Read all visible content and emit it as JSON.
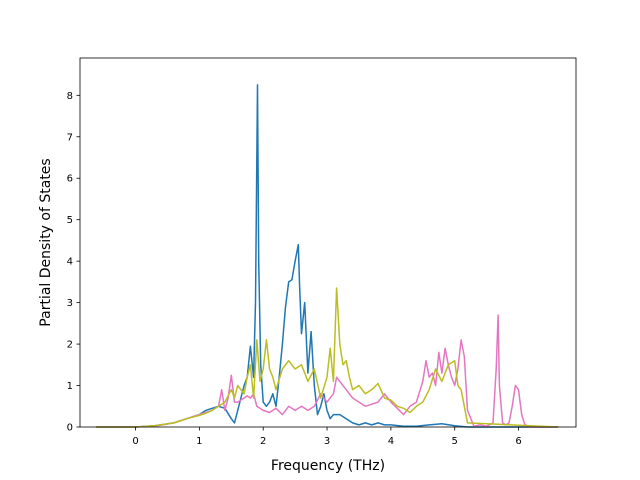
{
  "chart_data": {
    "type": "line",
    "title": "",
    "xlabel": "Frequency (THz)",
    "ylabel": "Partial Density of States",
    "xlim": [
      -0.87,
      6.9
    ],
    "ylim": [
      0,
      8.9
    ],
    "xticks": [
      0,
      1,
      2,
      3,
      4,
      5,
      6
    ],
    "yticks": [
      0,
      1,
      2,
      3,
      4,
      5,
      6,
      7,
      8
    ],
    "grid": false,
    "legend": "none",
    "series": [
      {
        "color": "#1f77b4",
        "x": [
          -0.62,
          0.0,
          0.3,
          0.6,
          0.8,
          1.0,
          1.1,
          1.2,
          1.3,
          1.4,
          1.5,
          1.55,
          1.6,
          1.7,
          1.75,
          1.8,
          1.85,
          1.88,
          1.91,
          1.93,
          1.96,
          2.0,
          2.05,
          2.1,
          2.15,
          2.2,
          2.25,
          2.3,
          2.35,
          2.4,
          2.45,
          2.5,
          2.55,
          2.57,
          2.6,
          2.65,
          2.7,
          2.75,
          2.8,
          2.85,
          2.9,
          2.95,
          3.0,
          3.05,
          3.1,
          3.2,
          3.3,
          3.4,
          3.5,
          3.6,
          3.7,
          3.8,
          3.9,
          4.0,
          4.2,
          4.4,
          4.6,
          4.8,
          5.0,
          5.2,
          6.62
        ],
        "values": [
          0,
          0,
          0.03,
          0.1,
          0.2,
          0.3,
          0.4,
          0.45,
          0.5,
          0.45,
          0.2,
          0.1,
          0.4,
          1.0,
          1.2,
          1.95,
          1.2,
          3.0,
          8.25,
          4.0,
          1.5,
          0.6,
          0.5,
          0.6,
          0.8,
          0.5,
          1.2,
          2.0,
          2.9,
          3.5,
          3.55,
          4.0,
          4.4,
          3.4,
          2.25,
          3.0,
          1.3,
          2.3,
          1.0,
          0.3,
          0.5,
          0.8,
          0.4,
          0.2,
          0.3,
          0.3,
          0.2,
          0.1,
          0.05,
          0.1,
          0.05,
          0.1,
          0.05,
          0.05,
          0.02,
          0.02,
          0.05,
          0.08,
          0.03,
          0.0,
          0
        ]
      },
      {
        "color": "#e377c2",
        "x": [
          -0.62,
          0.0,
          0.3,
          0.6,
          0.8,
          1.0,
          1.1,
          1.2,
          1.3,
          1.35,
          1.4,
          1.45,
          1.5,
          1.55,
          1.6,
          1.7,
          1.75,
          1.8,
          1.85,
          1.9,
          1.95,
          2.0,
          2.1,
          2.2,
          2.3,
          2.4,
          2.5,
          2.6,
          2.7,
          2.8,
          2.9,
          3.0,
          3.1,
          3.15,
          3.2,
          3.3,
          3.4,
          3.5,
          3.6,
          3.7,
          3.8,
          3.9,
          4.0,
          4.1,
          4.2,
          4.3,
          4.4,
          4.5,
          4.55,
          4.6,
          4.65,
          4.7,
          4.75,
          4.8,
          4.85,
          4.9,
          4.95,
          5.0,
          5.05,
          5.1,
          5.15,
          5.2,
          5.3,
          5.4,
          5.5,
          5.6,
          5.65,
          5.68,
          5.7,
          5.75,
          5.8,
          5.85,
          5.9,
          5.95,
          6.0,
          6.05,
          6.1,
          6.2,
          6.62
        ],
        "values": [
          0,
          0,
          0.02,
          0.1,
          0.2,
          0.3,
          0.35,
          0.4,
          0.5,
          0.9,
          0.4,
          0.7,
          1.25,
          0.6,
          0.6,
          0.7,
          0.75,
          0.7,
          0.8,
          0.5,
          0.45,
          0.4,
          0.35,
          0.45,
          0.3,
          0.5,
          0.4,
          0.5,
          0.4,
          0.5,
          0.8,
          0.6,
          0.8,
          1.2,
          1.1,
          0.9,
          0.7,
          0.6,
          0.5,
          0.55,
          0.6,
          0.8,
          0.6,
          0.45,
          0.3,
          0.5,
          0.6,
          1.1,
          1.6,
          1.2,
          1.3,
          1.0,
          1.8,
          1.3,
          1.9,
          1.5,
          1.2,
          1.0,
          1.4,
          2.1,
          1.7,
          0.4,
          0.02,
          0.05,
          0.02,
          0.1,
          1.4,
          2.7,
          1.0,
          0.1,
          0.05,
          0.1,
          0.5,
          1.0,
          0.9,
          0.3,
          0.05,
          0.0,
          0
        ]
      },
      {
        "color": "#bcbd22",
        "x": [
          -0.62,
          0.0,
          0.3,
          0.6,
          0.8,
          1.0,
          1.1,
          1.2,
          1.3,
          1.4,
          1.5,
          1.55,
          1.6,
          1.7,
          1.75,
          1.8,
          1.85,
          1.9,
          1.95,
          2.0,
          2.05,
          2.1,
          2.15,
          2.2,
          2.3,
          2.4,
          2.5,
          2.6,
          2.7,
          2.8,
          2.9,
          3.0,
          3.05,
          3.1,
          3.15,
          3.2,
          3.25,
          3.3,
          3.35,
          3.4,
          3.5,
          3.6,
          3.7,
          3.8,
          3.9,
          4.0,
          4.1,
          4.2,
          4.3,
          4.4,
          4.5,
          4.6,
          4.7,
          4.8,
          4.9,
          5.0,
          5.05,
          5.1,
          5.2,
          6.62
        ],
        "values": [
          0,
          0,
          0.03,
          0.1,
          0.2,
          0.28,
          0.33,
          0.4,
          0.5,
          0.6,
          0.9,
          0.7,
          1.0,
          0.8,
          1.2,
          1.5,
          0.7,
          2.1,
          1.1,
          1.4,
          2.1,
          1.4,
          1.2,
          0.9,
          1.4,
          1.6,
          1.4,
          1.5,
          1.1,
          1.4,
          0.7,
          1.2,
          1.9,
          1.1,
          3.35,
          2.0,
          1.5,
          1.6,
          1.2,
          0.9,
          1.0,
          0.8,
          0.9,
          1.05,
          0.7,
          0.65,
          0.5,
          0.45,
          0.35,
          0.5,
          0.6,
          0.9,
          1.4,
          1.1,
          1.5,
          1.6,
          1.0,
          0.9,
          0.1,
          0
        ]
      }
    ]
  }
}
